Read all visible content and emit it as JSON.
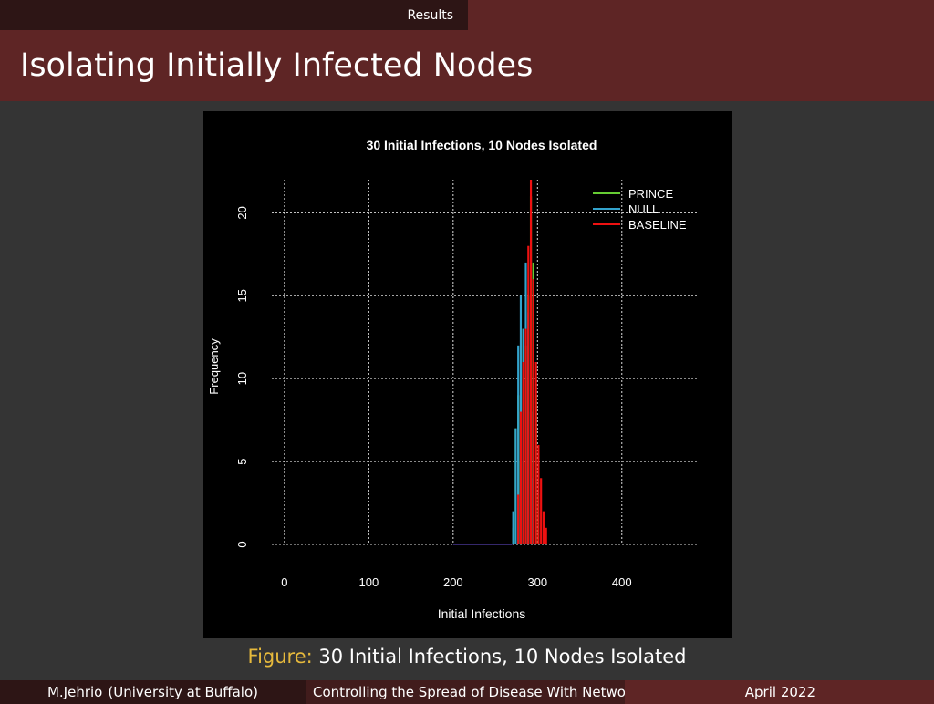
{
  "header": {
    "section": "Results",
    "title": "Isolating Initially Infected Nodes"
  },
  "caption": {
    "prefix": "Figure:",
    "text": "30 Initial Infections, 10 Nodes Isolated"
  },
  "footer": {
    "author": "M.Jehrio",
    "institution": "(University at Buffalo)",
    "talk_title": "Controlling the Spread of Disease With Network Analysis",
    "date": "April 2022"
  },
  "chart_data": {
    "type": "bar",
    "title": "30  Initial Infections,  10 Nodes Isolated",
    "xlabel": "Initial Infections",
    "ylabel": "Frequency",
    "xlim": [
      -15,
      490
    ],
    "ylim": [
      0,
      22
    ],
    "xticks": [
      0,
      100,
      200,
      300,
      400
    ],
    "yticks": [
      0,
      5,
      10,
      15,
      20
    ],
    "grid": true,
    "legend": "top-right",
    "bin_width": 3,
    "series": [
      {
        "name": "PRINCE",
        "color": "#66cc33",
        "bins": [
          [
            270,
            1
          ],
          [
            273,
            7
          ],
          [
            276,
            9
          ],
          [
            279,
            5
          ],
          [
            282,
            13
          ],
          [
            285,
            12
          ],
          [
            288,
            15
          ],
          [
            291,
            21
          ],
          [
            294,
            17
          ],
          [
            297,
            9
          ],
          [
            300,
            3
          ]
        ]
      },
      {
        "name": "NULL",
        "color": "#33a3cc",
        "bins": [
          [
            270,
            2
          ],
          [
            273,
            7
          ],
          [
            276,
            12
          ],
          [
            279,
            15
          ],
          [
            282,
            13
          ],
          [
            285,
            17
          ],
          [
            288,
            14
          ],
          [
            291,
            8
          ],
          [
            294,
            4
          ]
        ]
      },
      {
        "name": "BASELINE",
        "color": "#ee1111",
        "bins": [
          [
            276,
            3
          ],
          [
            279,
            8
          ],
          [
            282,
            11
          ],
          [
            285,
            13
          ],
          [
            288,
            18
          ],
          [
            291,
            22
          ],
          [
            294,
            16
          ],
          [
            297,
            11
          ],
          [
            300,
            6
          ],
          [
            303,
            4
          ],
          [
            306,
            2
          ],
          [
            309,
            1
          ]
        ]
      }
    ]
  }
}
